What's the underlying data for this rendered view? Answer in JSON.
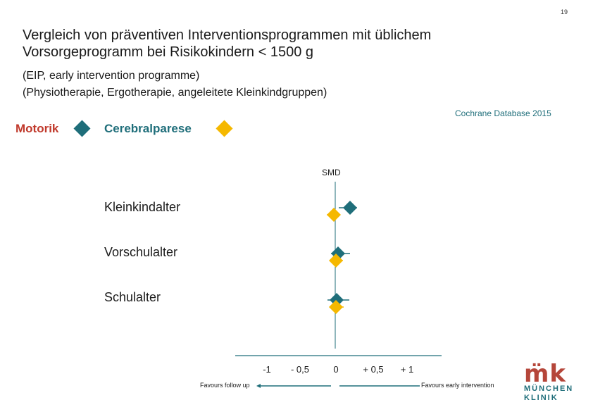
{
  "page_number": "19",
  "title_line1": "Vergleich von präventiven Interventionsprogrammen mit üblichem",
  "title_line2": "Vorsorgeprogramm bei Risikokindern < 1500 g",
  "subtitle_line1": "(EIP, early intervention programme)",
  "subtitle_line2": "(Physiotherapie, Ergotherapie, angeleitete Kleinkindgruppen)",
  "source": "Cochrane Database 2015",
  "legend": [
    {
      "label": "Motorik",
      "color": "#1f6e7a"
    },
    {
      "label": "Cerebralparese",
      "color": "#f5b800"
    }
  ],
  "logo": {
    "mark": "m̈k",
    "line1": "MÜNCHEN",
    "line2": "KLINIK"
  },
  "colors": {
    "motorik": "#1f6e7a",
    "cerebralparese": "#f5b800",
    "axis": "#1f6e7a",
    "brand_red": "#b5463a"
  },
  "chart_data": {
    "type": "scatter",
    "title": "",
    "ylabel": "SMD",
    "categories": [
      "Kleinkindalter",
      "Vorschulalter",
      "Schulalter"
    ],
    "x_tick_labels": [
      "-1",
      "- 0,5",
      "0",
      "+ 0,5",
      "+ 1"
    ],
    "x_ticks": [
      -1,
      -0.5,
      0,
      0.5,
      1
    ],
    "xlim": [
      -1.35,
      1.35
    ],
    "favours_left": "Favours follow up",
    "favours_right": "Favours early intervention",
    "series": [
      {
        "name": "Motorik",
        "color": "#1f6e7a",
        "values": [
          {
            "category": "Kleinkindalter",
            "est": 0.21,
            "lo": 0.05,
            "hi": 0.31
          },
          {
            "category": "Vorschulalter",
            "est": 0.04,
            "lo": -0.06,
            "hi": 0.21
          },
          {
            "category": "Schulalter",
            "est": 0.02,
            "lo": -0.11,
            "hi": 0.2
          }
        ]
      },
      {
        "name": "Cerebralparese",
        "color": "#f5b800",
        "values": [
          {
            "category": "Kleinkindalter",
            "est": -0.02,
            "lo": -0.12,
            "hi": 0.06
          },
          {
            "category": "Vorschulalter",
            "est": 0.01,
            "lo": -0.06,
            "hi": 0.11
          },
          {
            "category": "Schulalter",
            "est": 0.01,
            "lo": -0.08,
            "hi": 0.12
          }
        ]
      }
    ],
    "grid": false,
    "legend_position": "top-left"
  }
}
